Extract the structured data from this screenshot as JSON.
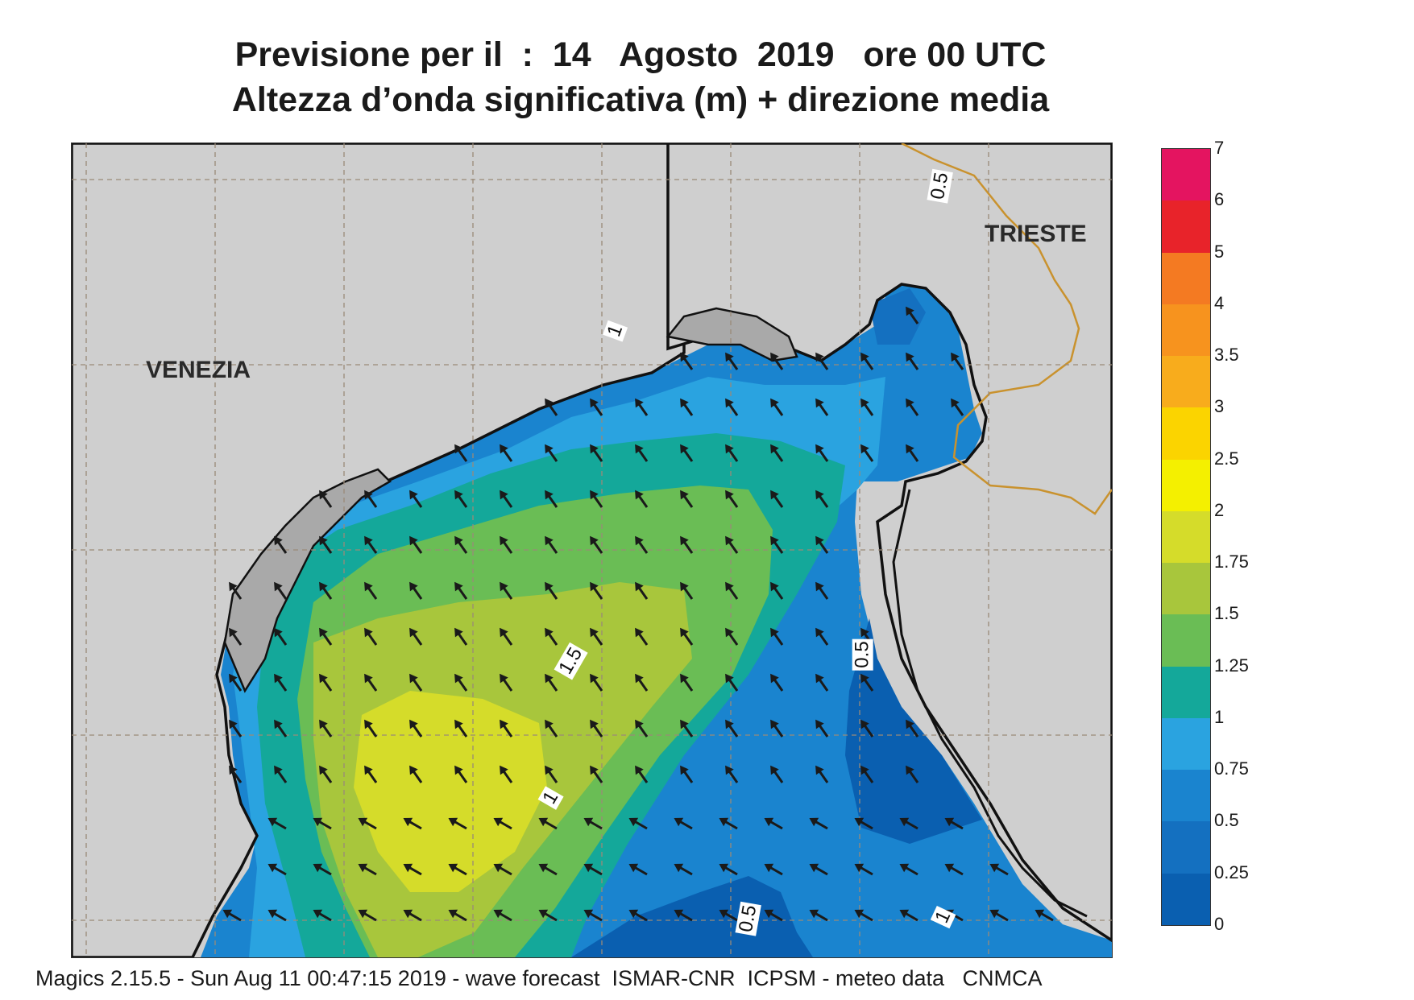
{
  "title": {
    "line1": "Previsione per il  :  14   Agosto  2019   ore 00 UTC",
    "line2": "Altezza d’onda significativa (m) + direzione media"
  },
  "cities": [
    {
      "name": "VENEZIA"
    },
    {
      "name": "TRIESTE"
    }
  ],
  "contour_labels": [
    "1",
    "1.5",
    "1",
    "0.5",
    "0.5",
    "1",
    "0.5"
  ],
  "legend": {
    "ticks": [
      "7",
      "6",
      "5",
      "4",
      "3.5",
      "3",
      "2.5",
      "2",
      "1.75",
      "1.5",
      "1.25",
      "1",
      "0.75",
      "0.5",
      "0.25",
      "0"
    ],
    "colors": [
      "#0a5fb0",
      "#1470c0",
      "#1a84cf",
      "#2aa3e0",
      "#14a89a",
      "#6abd55",
      "#a8c63c",
      "#d5dc2a",
      "#f4f000",
      "#fbd400",
      "#f8ac1c",
      "#f7931e",
      "#f47a22",
      "#e8232a",
      "#e41460"
    ]
  },
  "colors": {
    "land": "#cfcfcf",
    "coast": "#111111",
    "border": "#c9922e",
    "grid": "#9a8a78",
    "arrow": "#1a1a1a"
  },
  "footer": "Magics 2.15.5 - Sun Aug 11 00:47:15 2019 - wave forecast  ISMAR-CNR  ICPSM - meteo data   CNMCA"
}
